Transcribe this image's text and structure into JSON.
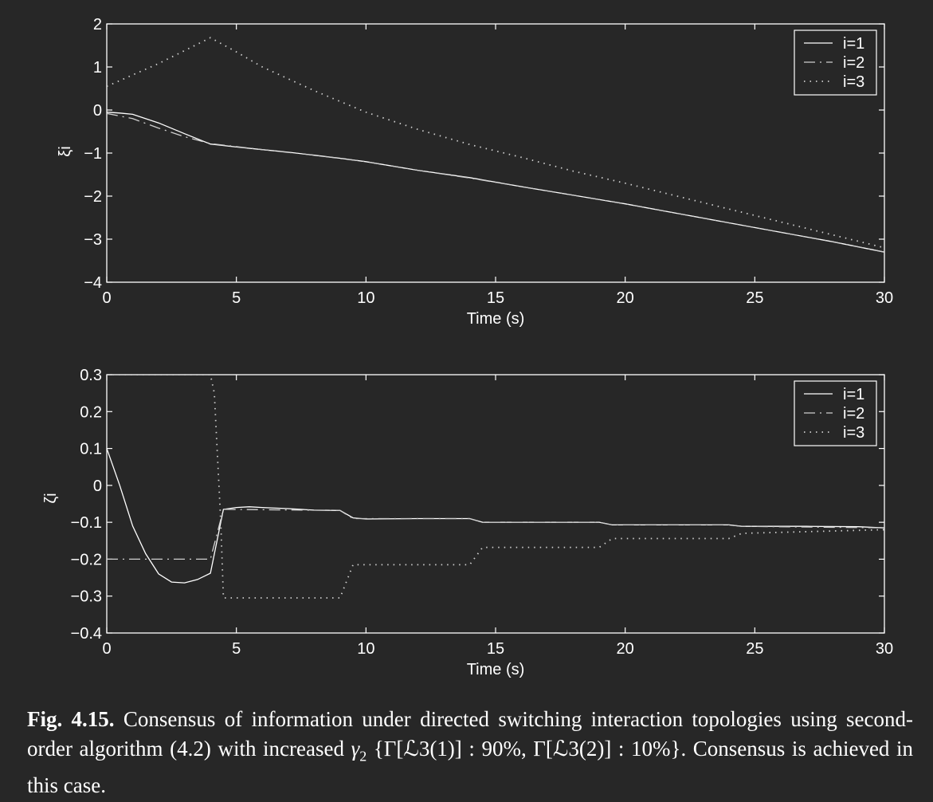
{
  "chart_data": [
    {
      "type": "line",
      "title": "",
      "xlabel": "Time (s)",
      "ylabel": "ξi",
      "xlim": [
        0,
        30
      ],
      "ylim": [
        -4,
        2
      ],
      "xticks": [
        "0",
        "5",
        "10",
        "15",
        "20",
        "25",
        "30"
      ],
      "yticks": [
        "2",
        "1",
        "0",
        "−1",
        "−2",
        "−3",
        "−4"
      ],
      "legend_position": "top-right",
      "series": [
        {
          "name": "i=1",
          "style": "solid",
          "x": [
            0,
            0.5,
            1,
            2,
            3,
            4,
            5,
            6,
            7,
            8,
            9,
            10,
            12,
            14,
            16,
            18,
            20,
            22,
            24,
            26,
            28,
            30
          ],
          "y": [
            -0.05,
            -0.07,
            -0.1,
            -0.3,
            -0.55,
            -0.79,
            -0.86,
            -0.92,
            -0.98,
            -1.05,
            -1.12,
            -1.2,
            -1.4,
            -1.57,
            -1.78,
            -1.98,
            -2.18,
            -2.4,
            -2.62,
            -2.84,
            -3.06,
            -3.3
          ]
        },
        {
          "name": "i=2",
          "style": "dashdot",
          "x": [
            0,
            1,
            2,
            3,
            4,
            5,
            6,
            8,
            10,
            12,
            14,
            16,
            18,
            20,
            22,
            24,
            26,
            28,
            30
          ],
          "y": [
            -0.08,
            -0.2,
            -0.42,
            -0.62,
            -0.78,
            -0.85,
            -0.92,
            -1.05,
            -1.2,
            -1.4,
            -1.58,
            -1.78,
            -1.98,
            -2.18,
            -2.4,
            -2.62,
            -2.84,
            -3.06,
            -3.3
          ]
        },
        {
          "name": "i=3",
          "style": "dotted",
          "x": [
            0,
            2,
            4,
            5,
            6,
            8,
            10,
            12,
            14,
            16,
            18,
            20,
            22,
            24,
            26,
            28,
            30
          ],
          "y": [
            0.55,
            1.08,
            1.68,
            1.35,
            1.0,
            0.45,
            -0.05,
            -0.45,
            -0.8,
            -1.1,
            -1.42,
            -1.7,
            -2.0,
            -2.3,
            -2.6,
            -2.9,
            -3.2
          ]
        }
      ]
    },
    {
      "type": "line",
      "title": "",
      "xlabel": "Time (s)",
      "ylabel": "ζi",
      "xlim": [
        0,
        30
      ],
      "ylim": [
        -0.4,
        0.3
      ],
      "xticks": [
        "0",
        "5",
        "10",
        "15",
        "20",
        "25",
        "30"
      ],
      "yticks": [
        "0.3",
        "0.2",
        "0.1",
        "0",
        "−0.1",
        "−0.2",
        "−0.3",
        "−0.4"
      ],
      "legend_position": "top-right",
      "series": [
        {
          "name": "i=1",
          "style": "solid",
          "x": [
            0,
            0.5,
            1,
            1.5,
            2,
            2.5,
            3,
            3.5,
            4,
            4.5,
            5,
            5.5,
            6,
            7,
            8,
            9,
            9.5,
            10,
            12,
            14,
            14.5,
            16,
            18,
            19,
            19.5,
            21,
            23,
            24,
            24.5,
            27,
            29,
            30
          ],
          "y": [
            0.1,
            0.0,
            -0.11,
            -0.185,
            -0.24,
            -0.262,
            -0.264,
            -0.255,
            -0.238,
            -0.065,
            -0.06,
            -0.058,
            -0.06,
            -0.063,
            -0.067,
            -0.068,
            -0.088,
            -0.091,
            -0.09,
            -0.09,
            -0.1,
            -0.1,
            -0.1,
            -0.1,
            -0.107,
            -0.107,
            -0.107,
            -0.107,
            -0.111,
            -0.111,
            -0.112,
            -0.115
          ]
        },
        {
          "name": "i=2",
          "style": "dashdot",
          "x": [
            0,
            4,
            4.5,
            9,
            9.5,
            14,
            14.5,
            19,
            19.5,
            24,
            24.5,
            30
          ],
          "y": [
            -0.2,
            -0.2,
            -0.065,
            -0.068,
            -0.09,
            -0.09,
            -0.1,
            -0.1,
            -0.107,
            -0.107,
            -0.111,
            -0.115
          ]
        },
        {
          "name": "i=3",
          "style": "dotted",
          "x": [
            0,
            4,
            4.15,
            4.4,
            4.5,
            9,
            9.5,
            14,
            14.5,
            19,
            19.5,
            24,
            24.5,
            30
          ],
          "y": [
            0.3,
            0.3,
            0.25,
            -0.1,
            -0.305,
            -0.305,
            -0.215,
            -0.215,
            -0.168,
            -0.168,
            -0.144,
            -0.144,
            -0.13,
            -0.12
          ]
        }
      ]
    }
  ],
  "caption": {
    "fig_label": "Fig. 4.15.",
    "text_part1": "Consensus of information under directed switching interaction topologies using second-order algorithm (4.2) with increased",
    "text_part2": "{Γ[ℒ3(1)] : 90%, Γ[ℒ3(2)] : 10%}. Consensus is achieved in this case."
  }
}
